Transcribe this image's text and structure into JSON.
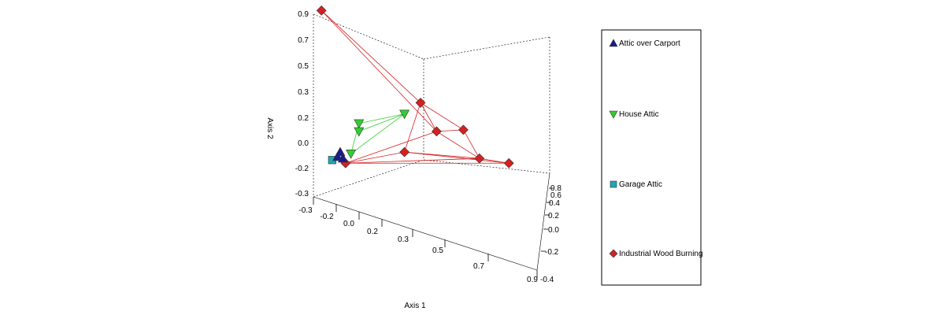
{
  "chart_data": {
    "type": "scatter",
    "subtype": "3d-scatter",
    "xlabel": "Axis 1",
    "ylabel": "Axis 2",
    "zlabel": "",
    "y_ticks": [
      "0.9",
      "0.7",
      "0.5",
      "0.3",
      "0.2",
      "0.0",
      "-0.2",
      "-0.3"
    ],
    "x_ticks": [
      "-0.3",
      "-0.2",
      "0.0",
      "0.2",
      "0.3",
      "0.5",
      "0.7",
      "0.9"
    ],
    "z_ticks": [
      "0.8",
      "0.6",
      "0.4",
      "0.2",
      "0.0",
      "-0.2",
      "-0.4"
    ],
    "legend_placement": "right",
    "series": [
      {
        "name": "Attic over Carport",
        "marker": "triangle-up",
        "color": "#1a1a8c",
        "points": [
          [
            0.09,
            -0.09
          ],
          [
            0.1,
            -0.06
          ],
          [
            0.11,
            -0.1
          ]
        ],
        "edges": [
          [
            0,
            1
          ],
          [
            1,
            2
          ]
        ]
      },
      {
        "name": "House Attic",
        "marker": "triangle-down",
        "color": "#33cc33",
        "points": [
          [
            0.17,
            0.12
          ],
          [
            0.17,
            0.07
          ],
          [
            0.34,
            0.18
          ],
          [
            0.14,
            -0.07
          ]
        ],
        "edges": [
          [
            0,
            2
          ],
          [
            1,
            2
          ],
          [
            0,
            3
          ],
          [
            2,
            3
          ]
        ]
      },
      {
        "name": "Garage Attic",
        "marker": "square",
        "color": "#22a6b3",
        "points": [
          [
            0.07,
            -0.11
          ]
        ],
        "edges": []
      },
      {
        "name": "Industrial Wood Burning",
        "marker": "diamond",
        "color": "#d62020",
        "points": [
          [
            0.03,
            0.83
          ],
          [
            0.4,
            0.25
          ],
          [
            0.46,
            0.07
          ],
          [
            0.56,
            0.08
          ],
          [
            0.34,
            -0.06
          ],
          [
            0.62,
            -0.1
          ],
          [
            0.73,
            -0.13
          ],
          [
            0.12,
            -0.13
          ]
        ],
        "edges": [
          [
            0,
            1
          ],
          [
            0,
            2
          ],
          [
            1,
            2
          ],
          [
            1,
            3
          ],
          [
            2,
            3
          ],
          [
            2,
            5
          ],
          [
            3,
            5
          ],
          [
            1,
            4
          ],
          [
            4,
            5
          ],
          [
            4,
            6
          ],
          [
            5,
            6
          ],
          [
            2,
            7
          ],
          [
            4,
            7
          ],
          [
            7,
            5
          ],
          [
            7,
            6
          ]
        ]
      }
    ]
  }
}
